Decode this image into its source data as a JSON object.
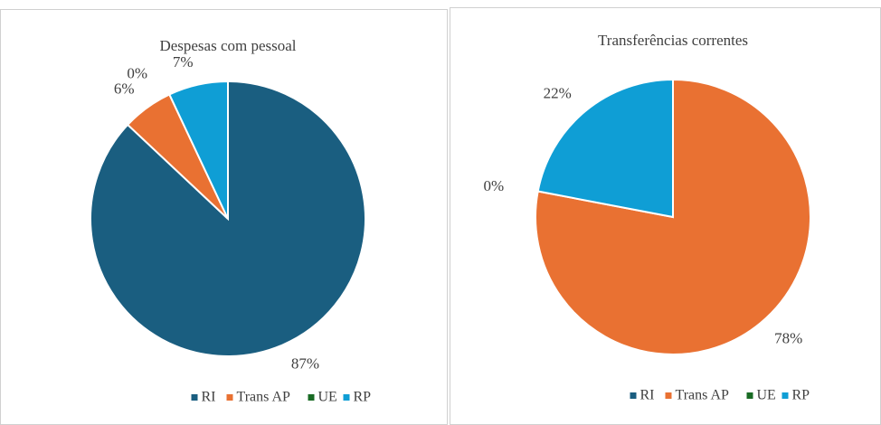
{
  "chart_data": [
    {
      "type": "pie",
      "title": "Despesas com pessoal",
      "categories": [
        "RI",
        "Trans AP",
        "UE",
        "RP"
      ],
      "values": [
        87,
        6,
        0,
        7
      ],
      "value_labels": [
        "87%",
        "6%",
        "0%",
        "7%"
      ],
      "colors": [
        "#1a5e80",
        "#e97132",
        "#196b24",
        "#0f9ed5"
      ],
      "legend": "bottom"
    },
    {
      "type": "pie",
      "title": "Transferências correntes",
      "categories": [
        "RI",
        "Trans AP",
        "UE",
        "RP"
      ],
      "values": [
        null,
        78,
        0,
        22
      ],
      "value_labels": [
        null,
        "78%",
        "0%",
        "22%"
      ],
      "colors": [
        "#1a5e80",
        "#e97132",
        "#196b24",
        "#0f9ed5"
      ],
      "legend": "bottom"
    }
  ]
}
